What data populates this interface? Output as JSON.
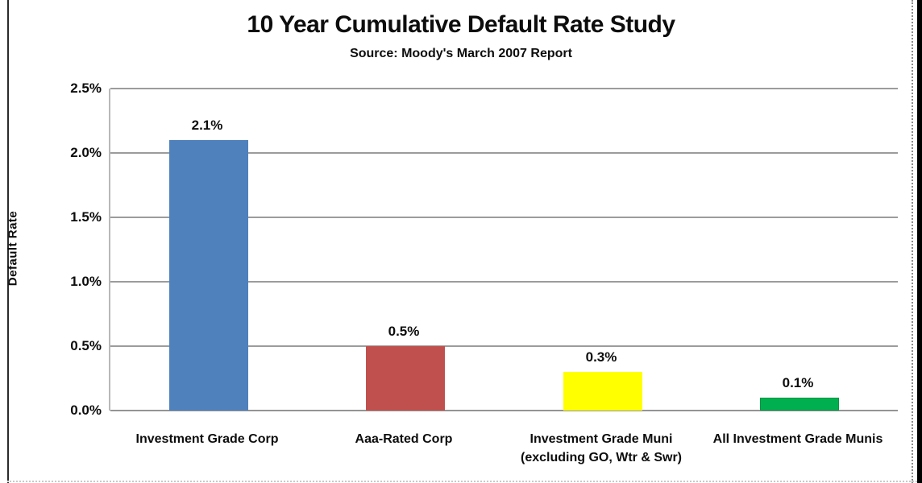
{
  "chart_data": {
    "type": "bar",
    "title": "10 Year Cumulative Default Rate Study",
    "subtitle": "Source: Moody's March 2007 Report",
    "ylabel": "Default Rate",
    "xlabel": "",
    "categories": [
      [
        "Investment Grade Corp"
      ],
      [
        "Aaa-Rated Corp"
      ],
      [
        "Investment Grade Muni",
        "(excluding GO, Wtr & Swr)"
      ],
      [
        "All Investment Grade Munis"
      ]
    ],
    "values": [
      2.1,
      0.5,
      0.3,
      0.1
    ],
    "value_labels": [
      "2.1%",
      "0.5%",
      "0.3%",
      "0.1%"
    ],
    "bar_colors": [
      "#4F81BD",
      "#C0504D",
      "#FFFF00",
      "#00B050"
    ],
    "bar_border_colors": [
      "#4F81BD",
      "#C0504D",
      "#FFFF00",
      "#009540"
    ],
    "ylim": [
      0,
      2.5
    ],
    "ytick_labels": [
      "2.5%",
      "2.0%",
      "1.5%",
      "1.0%",
      "0.5%",
      "0.0%"
    ],
    "grid": "horizontal",
    "gridline_color": "#9C9C9C",
    "legend_position": "none"
  }
}
